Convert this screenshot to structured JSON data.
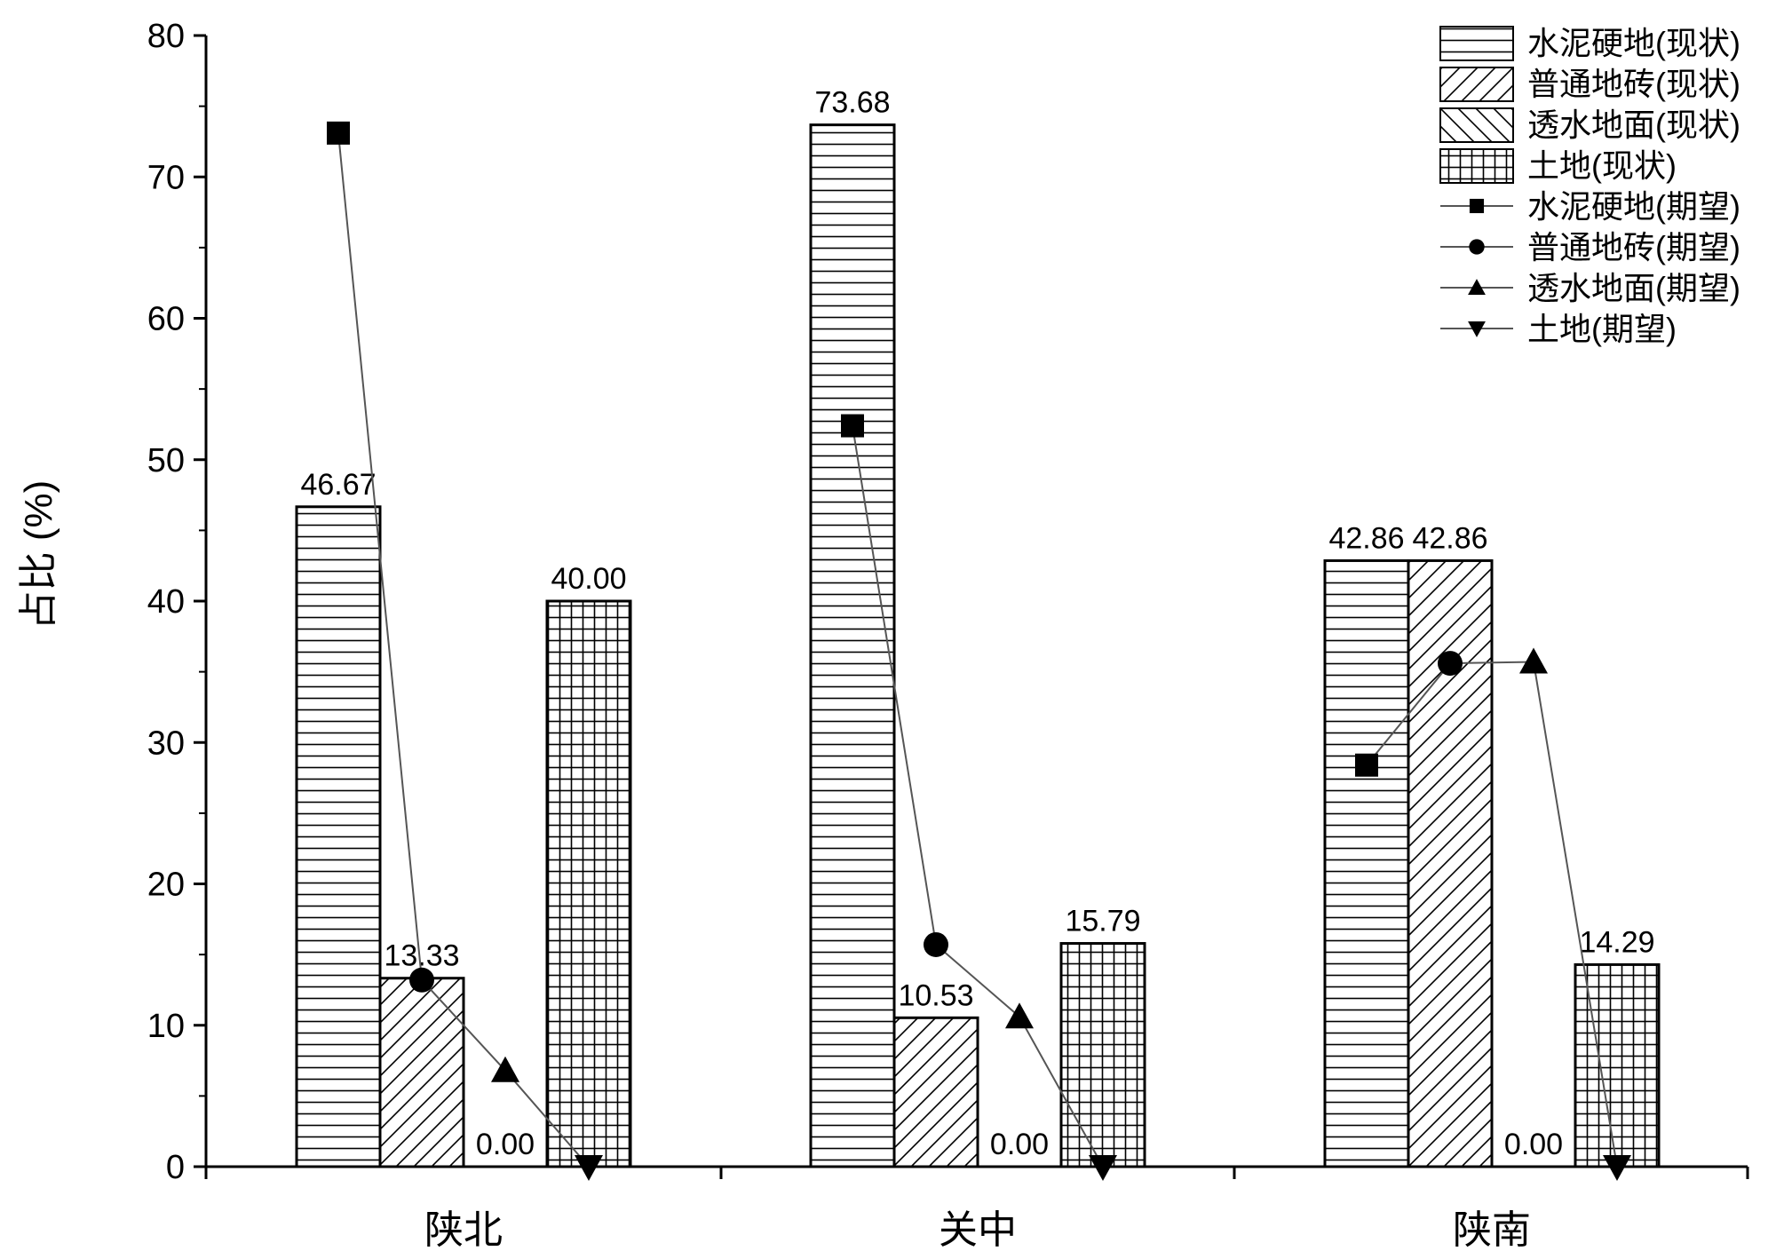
{
  "chart_data": {
    "type": "bar",
    "ylabel": "占比 (%)",
    "xlabel": "",
    "ylim": [
      0,
      80
    ],
    "yticks": [
      0,
      10,
      20,
      30,
      40,
      50,
      60,
      70,
      80
    ],
    "categories": [
      "陕北",
      "关中",
      "陕南"
    ],
    "bar_series": [
      {
        "name": "水泥硬地(现状)",
        "pattern": "horizontal",
        "values": [
          46.67,
          73.68,
          42.86
        ],
        "labels": [
          "46.67",
          "73.68",
          "42.86"
        ]
      },
      {
        "name": "普通地砖(现状)",
        "pattern": "diag-up",
        "values": [
          13.33,
          10.53,
          42.86
        ],
        "labels": [
          "13.33",
          "10.53",
          "42.86"
        ]
      },
      {
        "name": "透水地面(现状)",
        "pattern": "diag-down",
        "values": [
          0,
          0,
          0
        ],
        "labels": [
          "0.00",
          "0.00",
          "0.00"
        ]
      },
      {
        "name": "土地(现状)",
        "pattern": "grid",
        "values": [
          40.0,
          15.79,
          14.29
        ],
        "labels": [
          "40.00",
          "15.79",
          "14.29"
        ]
      }
    ],
    "line_series": [
      {
        "name": "水泥硬地(期望)",
        "marker": "square",
        "values": [
          73.1,
          52.4,
          28.4
        ]
      },
      {
        "name": "普通地砖(期望)",
        "marker": "circle",
        "values": [
          13.2,
          15.7,
          35.6
        ]
      },
      {
        "name": "透水地面(期望)",
        "marker": "triangle-up",
        "values": [
          6.8,
          10.6,
          35.7
        ]
      },
      {
        "name": "土地(期望)",
        "marker": "triangle-down",
        "values": [
          0,
          0,
          0
        ]
      }
    ],
    "legend_position": "top-right",
    "grid": false
  }
}
